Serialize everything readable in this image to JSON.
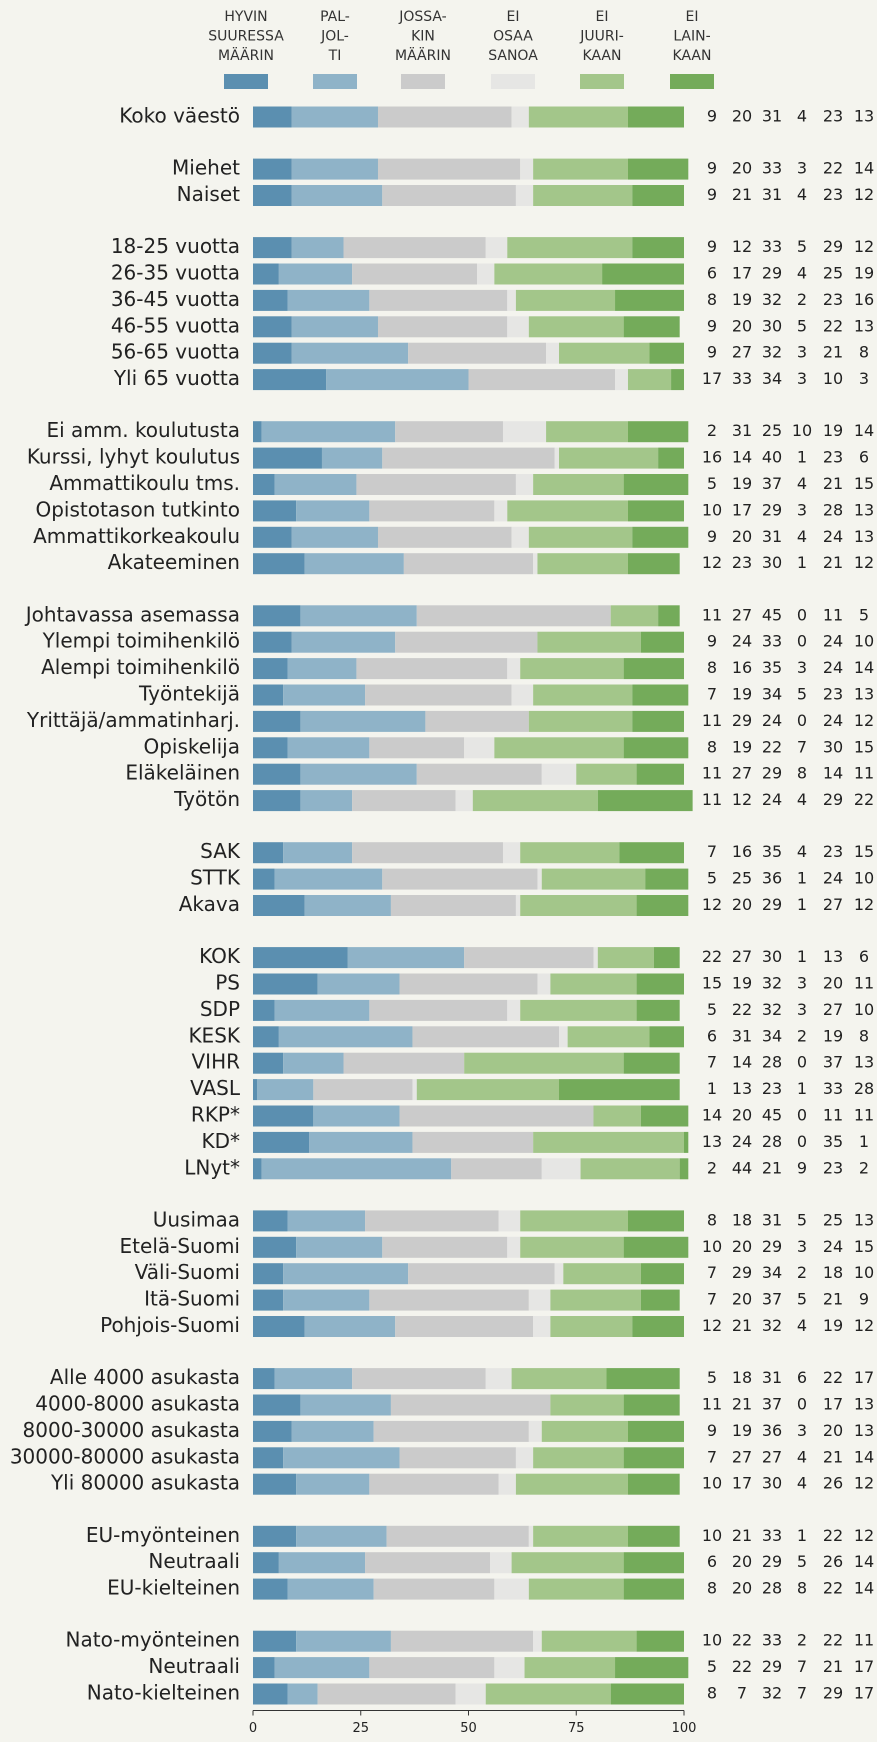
{
  "chart_data": {
    "type": "stacked_barh",
    "categories": [
      "Koko väestö",
      "Miehet",
      "Naiset",
      "18-25 vuotta",
      "26-35 vuotta",
      "36-45 vuotta",
      "46-55 vuotta",
      "56-65 vuotta",
      "Yli 65 vuotta",
      "Ei amm. koulutusta",
      "Kurssi, lyhyt koulutus",
      "Ammattikoulu tms.",
      "Opistotason tutkinto",
      "Ammattikorkeakoulu",
      "Akateeminen",
      "Johtavassa asemassa",
      "Ylempi toimihenkilö",
      "Alempi toimihenkilö",
      "Työntekijä",
      "Yrittäjä/ammatinharj.",
      "Opiskelija",
      "Eläkeläinen",
      "Työtön",
      "SAK",
      "STTK",
      "Akava",
      "KOK",
      "PS",
      "SDP",
      "KESK",
      "VIHR",
      "VASL",
      "RKP*",
      "KD*",
      "LNyt*",
      "Uusimaa",
      "Etelä-Suomi",
      "Väli-Suomi",
      "Itä-Suomi",
      "Pohjois-Suomi",
      "Alle 4000 asukasta",
      "4000-8000 asukasta",
      "8000-30000 asukasta",
      "30000-80000 asukasta",
      "Yli 80000 asukasta",
      "EU-myönteinen",
      "Neutraali",
      "EU-kielteinen",
      "Nato-myönteinen",
      "Neutraali",
      "Nato-kielteinen"
    ],
    "series": [
      {
        "name": "HYVIN\nSUURESSA\nMÄÄRIN",
        "color": "#5b8fb0",
        "values": [
          9,
          9,
          9,
          9,
          6,
          8,
          9,
          9,
          17,
          2,
          16,
          5,
          10,
          9,
          12,
          11,
          9,
          8,
          7,
          11,
          8,
          11,
          11,
          7,
          5,
          12,
          22,
          15,
          5,
          6,
          7,
          1,
          14,
          13,
          2,
          8,
          10,
          7,
          7,
          12,
          5,
          11,
          9,
          7,
          10,
          10,
          6,
          8,
          10,
          5,
          8
        ]
      },
      {
        "name": "PAL-\nJOL-\nTI",
        "color": "#8fb3c8",
        "values": [
          20,
          20,
          21,
          12,
          17,
          19,
          20,
          27,
          33,
          31,
          14,
          19,
          17,
          20,
          23,
          27,
          24,
          16,
          19,
          29,
          19,
          27,
          12,
          16,
          25,
          20,
          27,
          19,
          22,
          31,
          14,
          13,
          20,
          24,
          44,
          18,
          20,
          29,
          20,
          21,
          18,
          21,
          19,
          27,
          17,
          21,
          20,
          20,
          22,
          22,
          7
        ]
      },
      {
        "name": "JOSSA-\nKIN\nMÄÄRIN",
        "color": "#cbcbcb",
        "values": [
          31,
          33,
          31,
          33,
          29,
          32,
          30,
          32,
          34,
          25,
          40,
          37,
          29,
          31,
          30,
          45,
          33,
          35,
          34,
          24,
          22,
          29,
          24,
          35,
          36,
          29,
          30,
          32,
          32,
          34,
          28,
          23,
          45,
          28,
          21,
          31,
          29,
          34,
          37,
          32,
          31,
          37,
          36,
          27,
          30,
          33,
          29,
          28,
          33,
          29,
          32
        ]
      },
      {
        "name": "EI\nOSAA\nSANOA",
        "color": "#e6e6e4",
        "values": [
          4,
          3,
          4,
          5,
          4,
          2,
          5,
          3,
          3,
          10,
          1,
          4,
          3,
          4,
          1,
          0,
          0,
          3,
          5,
          0,
          7,
          8,
          4,
          4,
          1,
          1,
          1,
          3,
          3,
          2,
          0,
          1,
          0,
          0,
          9,
          5,
          3,
          2,
          5,
          4,
          6,
          0,
          3,
          4,
          4,
          1,
          5,
          8,
          2,
          7,
          7
        ]
      },
      {
        "name": "EI\nJUURI-\nKAAN",
        "color": "#a3c68a",
        "values": [
          23,
          22,
          23,
          29,
          25,
          23,
          22,
          21,
          10,
          19,
          23,
          21,
          28,
          24,
          21,
          11,
          24,
          24,
          23,
          24,
          30,
          14,
          29,
          23,
          24,
          27,
          13,
          20,
          27,
          19,
          37,
          33,
          11,
          35,
          23,
          25,
          24,
          18,
          21,
          19,
          22,
          17,
          20,
          21,
          26,
          22,
          26,
          22,
          22,
          21,
          29
        ]
      },
      {
        "name": "EI\nLAIN-\nKAAN",
        "color": "#74ab5a",
        "values": [
          13,
          14,
          12,
          12,
          19,
          16,
          13,
          8,
          3,
          14,
          6,
          15,
          13,
          13,
          12,
          5,
          10,
          14,
          13,
          12,
          15,
          11,
          22,
          15,
          10,
          12,
          6,
          11,
          10,
          8,
          13,
          28,
          11,
          1,
          2,
          13,
          15,
          10,
          9,
          12,
          17,
          13,
          13,
          14,
          12,
          12,
          14,
          14,
          11,
          17,
          17
        ]
      }
    ],
    "xlim": [
      0,
      100
    ],
    "xticks": [
      0,
      25,
      50,
      75,
      100
    ]
  }
}
